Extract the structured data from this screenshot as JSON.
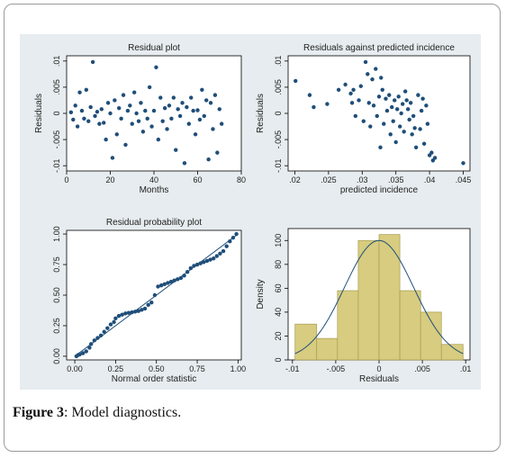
{
  "caption": {
    "label": "Figure 3",
    "text": ": Model diagnostics."
  },
  "colors": {
    "marker": "#1f4e79",
    "plot_bg": "#ffffff",
    "figure_bg": "#e6ecef",
    "bar_fill": "#d7cc7f",
    "bar_edge": "#a89c55",
    "curve": "#1f4e79"
  },
  "chart_data": [
    {
      "type": "scatter",
      "title": "Residual plot",
      "xlabel": "Months",
      "ylabel": "Residuals",
      "xlim": [
        0,
        80
      ],
      "ylim": [
        -0.011,
        0.011
      ],
      "xticks": [
        {
          "v": 0,
          "t": "0"
        },
        {
          "v": 20,
          "t": "20"
        },
        {
          "v": 40,
          "t": "40"
        },
        {
          "v": 60,
          "t": "60"
        },
        {
          "v": 80,
          "t": "80"
        }
      ],
      "yticks": [
        {
          "v": -0.01,
          "t": "-.01"
        },
        {
          "v": -0.005,
          "t": "-.005"
        },
        {
          "v": 0,
          "t": "0"
        },
        {
          "v": 0.005,
          "t": ".005"
        },
        {
          "v": 0.01,
          "t": ".01"
        }
      ],
      "points": [
        [
          2,
          0.0002
        ],
        [
          3,
          -0.0012
        ],
        [
          4,
          0.0015
        ],
        [
          5,
          -0.0025
        ],
        [
          6,
          0.004
        ],
        [
          7,
          0.0005
        ],
        [
          8,
          -0.001
        ],
        [
          9,
          0.0045
        ],
        [
          10,
          -0.0015
        ],
        [
          11,
          0.0012
        ],
        [
          12,
          0.0098
        ],
        [
          13,
          -0.0005
        ],
        [
          14,
          0.0003
        ],
        [
          15,
          -0.002
        ],
        [
          16,
          0.0008
        ],
        [
          17,
          -0.0018
        ],
        [
          18,
          -0.005
        ],
        [
          19,
          0.002
        ],
        [
          20,
          0.0
        ],
        [
          21,
          -0.0085
        ],
        [
          22,
          0.0025
        ],
        [
          23,
          -0.004
        ],
        [
          24,
          0.001
        ],
        [
          25,
          -0.001
        ],
        [
          26,
          0.0035
        ],
        [
          27,
          -0.006
        ],
        [
          28,
          0.0005
        ],
        [
          29,
          0.0015
        ],
        [
          30,
          -0.002
        ],
        [
          31,
          0.004
        ],
        [
          32,
          0.0
        ],
        [
          33,
          -0.0015
        ],
        [
          34,
          0.002
        ],
        [
          35,
          -0.0035
        ],
        [
          36,
          0.0005
        ],
        [
          37,
          -0.001
        ],
        [
          38,
          0.005
        ],
        [
          39,
          -0.0025
        ],
        [
          40,
          0.0005
        ],
        [
          41,
          0.0088
        ],
        [
          42,
          -0.005
        ],
        [
          43,
          0.003
        ],
        [
          44,
          -0.0015
        ],
        [
          45,
          0.001
        ],
        [
          46,
          -0.003
        ],
        [
          47,
          0.0015
        ],
        [
          48,
          -0.001
        ],
        [
          49,
          0.003
        ],
        [
          50,
          -0.007
        ],
        [
          51,
          0.0008
        ],
        [
          52,
          -0.0005
        ],
        [
          53,
          0.002
        ],
        [
          54,
          -0.0095
        ],
        [
          55,
          0.0012
        ],
        [
          56,
          -0.002
        ],
        [
          57,
          0.003
        ],
        [
          58,
          0.0005
        ],
        [
          59,
          -0.004
        ],
        [
          60,
          0.0006
        ],
        [
          61,
          -0.0012
        ],
        [
          62,
          0.0045
        ],
        [
          63,
          -0.0005
        ],
        [
          64,
          0.0025
        ],
        [
          65,
          -0.0088
        ],
        [
          66,
          0.002
        ],
        [
          67,
          -0.003
        ],
        [
          68,
          0.0035
        ],
        [
          69,
          -0.0075
        ],
        [
          70,
          0.0008
        ],
        [
          71,
          -0.002
        ]
      ]
    },
    {
      "type": "scatter",
      "title": "Residuals against predicted incidence",
      "xlabel": "predicted incidence",
      "ylabel": "Residuals",
      "xlim": [
        0.019,
        0.046
      ],
      "ylim": [
        -0.011,
        0.011
      ],
      "xticks": [
        {
          "v": 0.02,
          "t": ".02"
        },
        {
          "v": 0.025,
          "t": ".025"
        },
        {
          "v": 0.03,
          "t": ".03"
        },
        {
          "v": 0.035,
          "t": ".035"
        },
        {
          "v": 0.04,
          "t": ".04"
        },
        {
          "v": 0.045,
          "t": ".045"
        }
      ],
      "yticks": [
        {
          "v": -0.01,
          "t": "-.01"
        },
        {
          "v": -0.005,
          "t": "-.005"
        },
        {
          "v": 0,
          "t": "0"
        },
        {
          "v": 0.005,
          "t": ".005"
        },
        {
          "v": 0.01,
          "t": ".01"
        }
      ],
      "points": [
        [
          0.0201,
          0.0062
        ],
        [
          0.0222,
          0.0035
        ],
        [
          0.0228,
          0.0012
        ],
        [
          0.0248,
          0.0018
        ],
        [
          0.0265,
          0.0045
        ],
        [
          0.0275,
          0.0055
        ],
        [
          0.0283,
          0.0038
        ],
        [
          0.0285,
          0.002
        ],
        [
          0.0287,
          0.0045
        ],
        [
          0.029,
          -0.0005
        ],
        [
          0.0295,
          0.0025
        ],
        [
          0.0298,
          0.0052
        ],
        [
          0.0302,
          -0.0015
        ],
        [
          0.0305,
          0.0098
        ],
        [
          0.0308,
          0.0075
        ],
        [
          0.031,
          0.002
        ],
        [
          0.0312,
          -0.0025
        ],
        [
          0.0315,
          0.0065
        ],
        [
          0.0317,
          0.0015
        ],
        [
          0.032,
          0.0085
        ],
        [
          0.0322,
          -0.0005
        ],
        [
          0.0325,
          0.0032
        ],
        [
          0.0327,
          -0.0065
        ],
        [
          0.0328,
          0.0068
        ],
        [
          0.033,
          0.0045
        ],
        [
          0.0332,
          -0.002
        ],
        [
          0.0335,
          0.0028
        ],
        [
          0.0337,
          0.0005
        ],
        [
          0.034,
          0.0035
        ],
        [
          0.0342,
          -0.004
        ],
        [
          0.0344,
          0.0012
        ],
        [
          0.0346,
          -0.0015
        ],
        [
          0.0348,
          0.0025
        ],
        [
          0.035,
          -0.0055
        ],
        [
          0.0352,
          0.0008
        ],
        [
          0.0354,
          0.0032
        ],
        [
          0.0356,
          -0.0025
        ],
        [
          0.0358,
          0.0
        ],
        [
          0.036,
          0.0018
        ],
        [
          0.0362,
          -0.0035
        ],
        [
          0.0364,
          0.0042
        ],
        [
          0.0366,
          0.0025
        ],
        [
          0.0368,
          0.0008
        ],
        [
          0.037,
          -0.0012
        ],
        [
          0.0372,
          0.002
        ],
        [
          0.0374,
          -0.004
        ],
        [
          0.0376,
          -0.0005
        ],
        [
          0.0378,
          -0.0028
        ],
        [
          0.038,
          -0.0065
        ],
        [
          0.0383,
          0.0035
        ],
        [
          0.0386,
          -0.003
        ],
        [
          0.0388,
          0.0005
        ],
        [
          0.039,
          0.0028
        ],
        [
          0.0392,
          -0.0058
        ],
        [
          0.0395,
          0.0015
        ],
        [
          0.0397,
          -0.002
        ],
        [
          0.04,
          -0.008
        ],
        [
          0.0403,
          -0.0075
        ],
        [
          0.0405,
          -0.009
        ],
        [
          0.0408,
          -0.0085
        ],
        [
          0.045,
          -0.0095
        ]
      ]
    },
    {
      "type": "scatter",
      "title": "Residual probability plot",
      "xlabel": "Normal order statistic",
      "ylabel": "",
      "xlim": [
        -0.05,
        1.02
      ],
      "ylim": [
        -0.03,
        1.03
      ],
      "xticks": [
        {
          "v": 0,
          "t": "0.00"
        },
        {
          "v": 0.25,
          "t": "0.25"
        },
        {
          "v": 0.5,
          "t": "0.50"
        },
        {
          "v": 0.75,
          "t": "0.75"
        },
        {
          "v": 1,
          "t": "1.00"
        }
      ],
      "yticks": [
        {
          "v": 0,
          "t": "0.00"
        },
        {
          "v": 0.25,
          "t": "0.25"
        },
        {
          "v": 0.5,
          "t": "0.50"
        },
        {
          "v": 0.75,
          "t": "0.75"
        },
        {
          "v": 1,
          "t": "1.00"
        }
      ],
      "reference_line": [
        [
          0,
          0
        ],
        [
          1,
          1
        ]
      ],
      "points": [
        [
          0.01,
          0.0
        ],
        [
          0.02,
          0.01
        ],
        [
          0.03,
          0.015
        ],
        [
          0.05,
          0.025
        ],
        [
          0.07,
          0.04
        ],
        [
          0.09,
          0.07
        ],
        [
          0.1,
          0.1
        ],
        [
          0.12,
          0.13
        ],
        [
          0.14,
          0.15
        ],
        [
          0.16,
          0.17
        ],
        [
          0.18,
          0.2
        ],
        [
          0.2,
          0.23
        ],
        [
          0.22,
          0.26
        ],
        [
          0.24,
          0.28
        ],
        [
          0.25,
          0.31
        ],
        [
          0.27,
          0.33
        ],
        [
          0.29,
          0.34
        ],
        [
          0.31,
          0.35
        ],
        [
          0.33,
          0.355
        ],
        [
          0.35,
          0.36
        ],
        [
          0.37,
          0.365
        ],
        [
          0.39,
          0.37
        ],
        [
          0.41,
          0.38
        ],
        [
          0.43,
          0.39
        ],
        [
          0.45,
          0.42
        ],
        [
          0.47,
          0.44
        ],
        [
          0.49,
          0.5
        ],
        [
          0.51,
          0.57
        ],
        [
          0.53,
          0.58
        ],
        [
          0.55,
          0.59
        ],
        [
          0.57,
          0.6
        ],
        [
          0.59,
          0.61
        ],
        [
          0.61,
          0.62
        ],
        [
          0.63,
          0.63
        ],
        [
          0.65,
          0.64
        ],
        [
          0.67,
          0.66
        ],
        [
          0.69,
          0.69
        ],
        [
          0.71,
          0.72
        ],
        [
          0.73,
          0.74
        ],
        [
          0.75,
          0.75
        ],
        [
          0.77,
          0.76
        ],
        [
          0.79,
          0.77
        ],
        [
          0.81,
          0.78
        ],
        [
          0.83,
          0.79
        ],
        [
          0.85,
          0.8
        ],
        [
          0.87,
          0.82
        ],
        [
          0.89,
          0.84
        ],
        [
          0.91,
          0.86
        ],
        [
          0.93,
          0.9
        ],
        [
          0.95,
          0.94
        ],
        [
          0.97,
          0.97
        ],
        [
          0.99,
          1.0
        ]
      ]
    },
    {
      "type": "bar",
      "title": "",
      "xlabel": "Residuals",
      "ylabel": "Density",
      "xlim": [
        -0.0105,
        0.0105
      ],
      "ylim": [
        0,
        110
      ],
      "xticks": [
        {
          "v": -0.01,
          "t": "-.01"
        },
        {
          "v": -0.005,
          "t": "-.005"
        },
        {
          "v": 0,
          "t": "0"
        },
        {
          "v": 0.005,
          "t": ".005"
        },
        {
          "v": 0.01,
          "t": ".01"
        }
      ],
      "yticks": [
        {
          "v": 0,
          "t": "0"
        },
        {
          "v": 20,
          "t": "20"
        },
        {
          "v": 40,
          "t": "40"
        },
        {
          "v": 60,
          "t": "60"
        },
        {
          "v": 80,
          "t": "80"
        },
        {
          "v": 100,
          "t": "100"
        }
      ],
      "bins": [
        [
          -0.0097,
          -0.0072,
          30
        ],
        [
          -0.0072,
          -0.0048,
          18
        ],
        [
          -0.0048,
          -0.0024,
          58
        ],
        [
          -0.0024,
          0.0,
          100
        ],
        [
          0.0,
          0.0024,
          105
        ],
        [
          0.0024,
          0.0048,
          58
        ],
        [
          0.0048,
          0.0072,
          40
        ],
        [
          0.0072,
          0.0097,
          13
        ]
      ],
      "normal_curve": {
        "mean": 0.0,
        "sd": 0.004,
        "peak": 100
      }
    }
  ]
}
